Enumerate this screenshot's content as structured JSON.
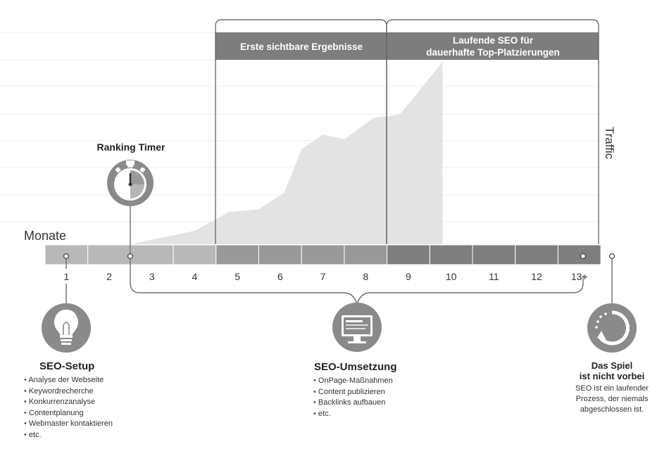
{
  "header": {
    "phase_first_results": "Erste sichtbare Ergebnisse",
    "phase_ongoing_line1": "Laufende SEO für",
    "phase_ongoing_line2": "dauerhafte Top-Platzierungen"
  },
  "labels": {
    "traffic": "Traffic",
    "months": "Monate",
    "ranking_timer": "Ranking Timer"
  },
  "timeline": {
    "months": [
      "1",
      "2",
      "3",
      "4",
      "5",
      "6",
      "7",
      "8",
      "9",
      "10",
      "11",
      "12",
      "13+"
    ]
  },
  "traffic_area": {
    "points": [
      [
        2.5,
        0
      ],
      [
        4,
        0.24
      ],
      [
        4.8,
        0.58
      ],
      [
        5.5,
        0.63
      ],
      [
        6.1,
        0.93
      ],
      [
        6.5,
        1.71
      ],
      [
        7,
        1.97
      ],
      [
        7.5,
        1.89
      ],
      [
        8.2,
        2.28
      ],
      [
        8.8,
        2.33
      ],
      [
        9.8,
        3.28
      ]
    ]
  },
  "colors": {
    "bar_light": "#b8b8b8",
    "bar_mid": "#999999",
    "bar_dark": "#7e7e7e",
    "area": "#e3e3e3",
    "header": "#7d7d7d",
    "icon": "#8a8a8a"
  },
  "seo_setup": {
    "title": "SEO-Setup",
    "items": [
      "Analyse der Webseite",
      "Keywordrecherche",
      "Konkurrenzanalyse",
      "Contentplanung",
      "Webmaster kontaktieren",
      "etc."
    ]
  },
  "seo_implementation": {
    "title": "SEO-Umsetzung",
    "items": [
      "OnPage-Maßnahmen",
      "Content publizieren",
      "Backlinks aufbauen",
      "etc."
    ]
  },
  "game_not_over": {
    "title_line1": "Das Spiel",
    "title_line2": "ist nicht vorbei",
    "text_line1": "SEO ist ein laufender",
    "text_line2": "Prozess, der niemals",
    "text_line3": "abgeschlossen ist."
  },
  "icons": {
    "timer": "stopwatch-icon",
    "bulb": "lightbulb-icon",
    "monitor": "monitor-icon",
    "cycle": "refresh-icon"
  }
}
